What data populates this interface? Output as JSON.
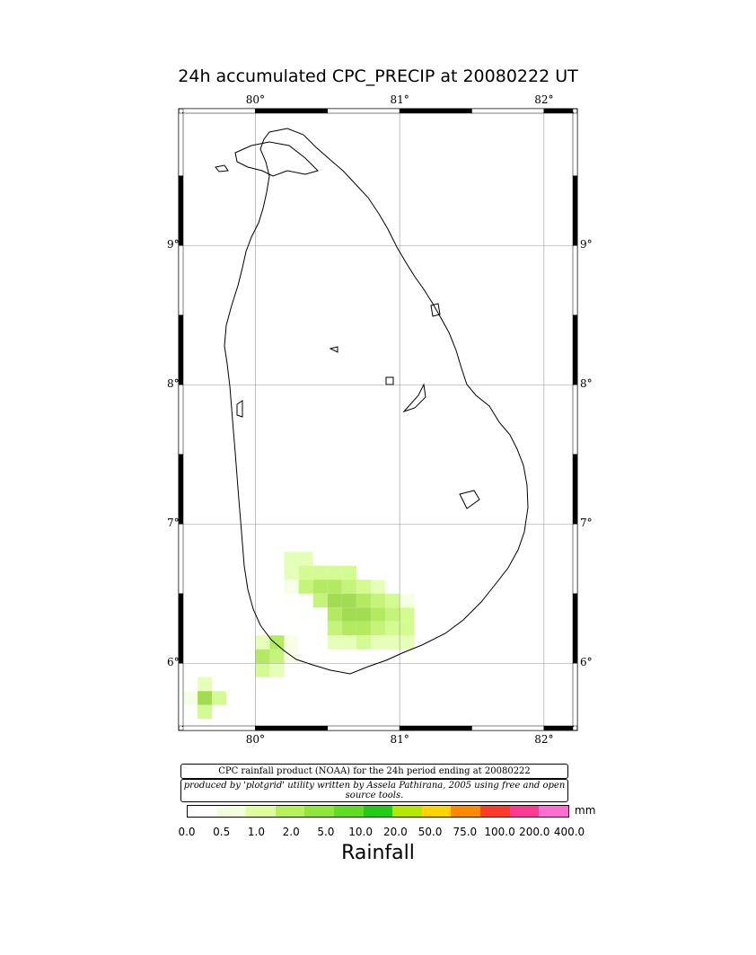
{
  "title": "24h accumulated CPC_PRECIP  at 20080222 UT",
  "lon_labels": [
    "80°",
    "81°",
    "82°"
  ],
  "lat_labels": [
    "9°",
    "8°",
    "7°",
    "6°"
  ],
  "credit_line1": "CPC rainfall product (NOAA) for the 24h period ending at 20080222",
  "credit_line2": "produced by 'plotgrid' utility written by Assela Pathirana, 2005 using free and open source tools.",
  "colorbar": {
    "unit": "mm",
    "title": "Rainfall",
    "ticks": [
      "0.0",
      "0.5",
      "1.0",
      "2.0",
      "5.0",
      "10.0",
      "20.0",
      "50.0",
      "75.0",
      "100.0",
      "200.0",
      "400.0"
    ],
    "colors": [
      "#ffffff",
      "#f4ffe0",
      "#ddff9c",
      "#b8f05a",
      "#8ee83a",
      "#5fdd22",
      "#22cc14",
      "#b4e800",
      "#ffd400",
      "#ff8a00",
      "#ff3a28",
      "#ff3a90",
      "#ff6fd2"
    ]
  },
  "chart_data": {
    "type": "heatmap",
    "title": "24h accumulated CPC_PRECIP  at 20080222 UT",
    "xlabel": "",
    "ylabel": "",
    "xlim": [
      79.5,
      82.2
    ],
    "ylim": [
      5.55,
      9.95
    ],
    "grid": true,
    "units": "mm",
    "cell_size_deg": 0.1,
    "cells": [
      {
        "lon": 80.25,
        "lat": 6.75,
        "value": 0.8
      },
      {
        "lon": 80.35,
        "lat": 6.75,
        "value": 0.8
      },
      {
        "lon": 80.25,
        "lat": 6.65,
        "value": 0.9
      },
      {
        "lon": 80.35,
        "lat": 6.65,
        "value": 1.2
      },
      {
        "lon": 80.45,
        "lat": 6.65,
        "value": 1.2
      },
      {
        "lon": 80.55,
        "lat": 6.65,
        "value": 1.2
      },
      {
        "lon": 80.65,
        "lat": 6.65,
        "value": 1.0
      },
      {
        "lon": 80.25,
        "lat": 6.55,
        "value": 0.6
      },
      {
        "lon": 80.35,
        "lat": 6.55,
        "value": 1.3
      },
      {
        "lon": 80.45,
        "lat": 6.55,
        "value": 1.6
      },
      {
        "lon": 80.55,
        "lat": 6.55,
        "value": 1.6
      },
      {
        "lon": 80.65,
        "lat": 6.55,
        "value": 1.5
      },
      {
        "lon": 80.75,
        "lat": 6.55,
        "value": 1.0
      },
      {
        "lon": 80.85,
        "lat": 6.55,
        "value": 0.7
      },
      {
        "lon": 80.45,
        "lat": 6.45,
        "value": 1.5
      },
      {
        "lon": 80.55,
        "lat": 6.45,
        "value": 1.9
      },
      {
        "lon": 80.65,
        "lat": 6.45,
        "value": 2.3
      },
      {
        "lon": 80.75,
        "lat": 6.45,
        "value": 1.8
      },
      {
        "lon": 80.85,
        "lat": 6.45,
        "value": 1.3
      },
      {
        "lon": 80.95,
        "lat": 6.45,
        "value": 1.0
      },
      {
        "lon": 81.05,
        "lat": 6.45,
        "value": 0.6
      },
      {
        "lon": 80.55,
        "lat": 6.35,
        "value": 1.8
      },
      {
        "lon": 80.65,
        "lat": 6.35,
        "value": 2.1
      },
      {
        "lon": 80.75,
        "lat": 6.35,
        "value": 1.9
      },
      {
        "lon": 80.85,
        "lat": 6.35,
        "value": 1.6
      },
      {
        "lon": 80.95,
        "lat": 6.35,
        "value": 1.3
      },
      {
        "lon": 81.05,
        "lat": 6.35,
        "value": 1.0
      },
      {
        "lon": 80.55,
        "lat": 6.25,
        "value": 1.5
      },
      {
        "lon": 80.65,
        "lat": 6.25,
        "value": 1.8
      },
      {
        "lon": 80.75,
        "lat": 6.25,
        "value": 1.6
      },
      {
        "lon": 80.85,
        "lat": 6.25,
        "value": 1.4
      },
      {
        "lon": 80.95,
        "lat": 6.25,
        "value": 1.2
      },
      {
        "lon": 81.05,
        "lat": 6.25,
        "value": 1.1
      },
      {
        "lon": 80.55,
        "lat": 6.15,
        "value": 0.7
      },
      {
        "lon": 80.65,
        "lat": 6.15,
        "value": 0.9
      },
      {
        "lon": 80.75,
        "lat": 6.15,
        "value": 1.0
      },
      {
        "lon": 80.85,
        "lat": 6.15,
        "value": 0.9
      },
      {
        "lon": 80.95,
        "lat": 6.15,
        "value": 0.8
      },
      {
        "lon": 81.05,
        "lat": 6.15,
        "value": 0.7
      },
      {
        "lon": 80.05,
        "lat": 6.15,
        "value": 0.8
      },
      {
        "lon": 80.15,
        "lat": 6.15,
        "value": 1.6
      },
      {
        "lon": 80.25,
        "lat": 6.15,
        "value": 0.6
      },
      {
        "lon": 80.05,
        "lat": 6.05,
        "value": 1.7
      },
      {
        "lon": 80.15,
        "lat": 6.05,
        "value": 1.5
      },
      {
        "lon": 80.25,
        "lat": 6.05,
        "value": 0.6
      },
      {
        "lon": 80.05,
        "lat": 5.95,
        "value": 1.0
      },
      {
        "lon": 80.15,
        "lat": 5.95,
        "value": 0.8
      },
      {
        "lon": 79.65,
        "lat": 5.85,
        "value": 0.7
      },
      {
        "lon": 79.55,
        "lat": 5.75,
        "value": 0.6
      },
      {
        "lon": 79.65,
        "lat": 5.75,
        "value": 2.0
      },
      {
        "lon": 79.75,
        "lat": 5.75,
        "value": 1.0
      },
      {
        "lon": 79.65,
        "lat": 5.65,
        "value": 1.2
      }
    ]
  }
}
